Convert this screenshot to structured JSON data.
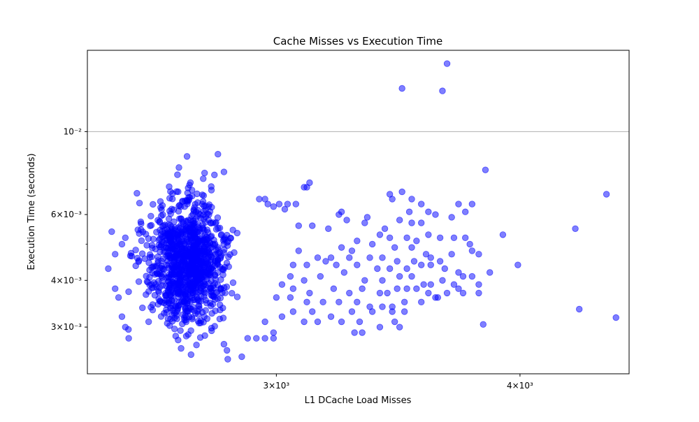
{
  "chart_data": {
    "type": "scatter",
    "title": "Cache Misses vs Execution Time",
    "xlabel": "L1 DCache Load Misses",
    "ylabel": "Execution Time (seconds)",
    "xscale": "log",
    "yscale": "log",
    "xlim": [
      2400,
      4550
    ],
    "ylim": [
      0.00225,
      0.0165
    ],
    "grid": "major y only",
    "x_ticks": [
      {
        "value": 3000,
        "label": "3×10³"
      },
      {
        "value": 4000,
        "label": "4×10³"
      }
    ],
    "y_ticks": [
      {
        "value": 0.003,
        "label": "3×10⁻³"
      },
      {
        "value": 0.004,
        "label": "4×10⁻³"
      },
      {
        "value": 0.006,
        "label": "6×10⁻³"
      },
      {
        "value": 0.01,
        "label": "10⁻²"
      }
    ],
    "point_color": "#0000ff",
    "point_alpha": 0.5,
    "dense_cluster": {
      "x_center": 2700,
      "x_spread": 60,
      "y_center": 0.0045,
      "y_spread_log": 0.085,
      "count": 1100
    },
    "points": [
      [
        3670,
        0.0152
      ],
      [
        3480,
        0.01305
      ],
      [
        3650,
        0.01285
      ],
      [
        3840,
        0.0079
      ],
      [
        4430,
        0.0068
      ],
      [
        4270,
        0.0055
      ],
      [
        3920,
        0.0053
      ],
      [
        3990,
        0.0044
      ],
      [
        4290,
        0.00335
      ],
      [
        4480,
        0.00318
      ],
      [
        3830,
        0.00305
      ],
      [
        2800,
        0.0087
      ],
      [
        2820,
        0.0078
      ],
      [
        3120,
        0.0073
      ],
      [
        3110,
        0.0071
      ],
      [
        3100,
        0.0071
      ],
      [
        3480,
        0.0069
      ],
      [
        3430,
        0.0068
      ],
      [
        3520,
        0.0066
      ],
      [
        3440,
        0.0066
      ],
      [
        3560,
        0.0064
      ],
      [
        3720,
        0.0064
      ],
      [
        3780,
        0.0064
      ],
      [
        3750,
        0.0061
      ],
      [
        3240,
        0.0061
      ],
      [
        3590,
        0.0061
      ],
      [
        3510,
        0.0061
      ],
      [
        3340,
        0.0059
      ],
      [
        3690,
        0.0059
      ],
      [
        3620,
        0.006
      ],
      [
        3230,
        0.006
      ],
      [
        3260,
        0.0058
      ],
      [
        3330,
        0.0057
      ],
      [
        3470,
        0.0058
      ],
      [
        3520,
        0.0057
      ],
      [
        3560,
        0.0057
      ],
      [
        3080,
        0.0056
      ],
      [
        3130,
        0.0056
      ],
      [
        3190,
        0.0055
      ],
      [
        3410,
        0.0055
      ],
      [
        3590,
        0.0053
      ],
      [
        3640,
        0.0052
      ],
      [
        3700,
        0.0052
      ],
      [
        3750,
        0.0052
      ],
      [
        3770,
        0.005
      ],
      [
        3390,
        0.0053
      ],
      [
        3430,
        0.0052
      ],
      [
        3500,
        0.0052
      ],
      [
        3540,
        0.0051
      ],
      [
        3300,
        0.0051
      ],
      [
        3240,
        0.0049
      ],
      [
        3280,
        0.0048
      ],
      [
        3360,
        0.005
      ],
      [
        3450,
        0.0049
      ],
      [
        3520,
        0.0049
      ],
      [
        3580,
        0.0047
      ],
      [
        3600,
        0.0046
      ],
      [
        3640,
        0.0045
      ],
      [
        3690,
        0.0047
      ],
      [
        3780,
        0.0048
      ],
      [
        3810,
        0.0047
      ],
      [
        3080,
        0.0048
      ],
      [
        3150,
        0.0046
      ],
      [
        3200,
        0.0046
      ],
      [
        3270,
        0.0046
      ],
      [
        3350,
        0.0046
      ],
      [
        3400,
        0.0046
      ],
      [
        3460,
        0.0045
      ],
      [
        3530,
        0.0045
      ],
      [
        3060,
        0.0044
      ],
      [
        3110,
        0.0044
      ],
      [
        3180,
        0.0045
      ],
      [
        3220,
        0.0044
      ],
      [
        3300,
        0.0044
      ],
      [
        3380,
        0.0043
      ],
      [
        3430,
        0.0043
      ],
      [
        3500,
        0.0043
      ],
      [
        3560,
        0.0044
      ],
      [
        3600,
        0.0044
      ],
      [
        3660,
        0.0043
      ],
      [
        3720,
        0.0042
      ],
      [
        3740,
        0.0041
      ],
      [
        3780,
        0.0041
      ],
      [
        3860,
        0.0042
      ],
      [
        3050,
        0.0041
      ],
      [
        3100,
        0.004
      ],
      [
        3160,
        0.0041
      ],
      [
        3250,
        0.0042
      ],
      [
        3330,
        0.004
      ],
      [
        3400,
        0.004
      ],
      [
        3470,
        0.0041
      ],
      [
        3520,
        0.0041
      ],
      [
        3570,
        0.0039
      ],
      [
        3600,
        0.0039
      ],
      [
        3650,
        0.004
      ],
      [
        3700,
        0.0039
      ],
      [
        3720,
        0.0038
      ],
      [
        3810,
        0.0039
      ],
      [
        3020,
        0.0039
      ],
      [
        3060,
        0.0038
      ],
      [
        3120,
        0.0037
      ],
      [
        3210,
        0.0038
      ],
      [
        3270,
        0.0037
      ],
      [
        3320,
        0.0038
      ],
      [
        3390,
        0.0037
      ],
      [
        3420,
        0.0037
      ],
      [
        3460,
        0.0038
      ],
      [
        3500,
        0.0038
      ],
      [
        3540,
        0.0038
      ],
      [
        3590,
        0.0037
      ],
      [
        3630,
        0.0036
      ],
      [
        3670,
        0.0037
      ],
      [
        3740,
        0.0037
      ],
      [
        3810,
        0.0037
      ],
      [
        3000,
        0.0036
      ],
      [
        3050,
        0.0036
      ],
      [
        3110,
        0.0035
      ],
      [
        3170,
        0.0035
      ],
      [
        3230,
        0.0035
      ],
      [
        3300,
        0.0035
      ],
      [
        3350,
        0.0034
      ],
      [
        3400,
        0.0034
      ],
      [
        3440,
        0.0034
      ],
      [
        3490,
        0.0035
      ],
      [
        3560,
        0.0035
      ],
      [
        3620,
        0.0036
      ],
      [
        3060,
        0.0033
      ],
      [
        3130,
        0.0033
      ],
      [
        3200,
        0.0032
      ],
      [
        3280,
        0.0033
      ],
      [
        3360,
        0.0033
      ],
      [
        3440,
        0.0033
      ],
      [
        3490,
        0.0033
      ],
      [
        3020,
        0.0032
      ],
      [
        3100,
        0.0031
      ],
      [
        3150,
        0.0031
      ],
      [
        3240,
        0.0031
      ],
      [
        3310,
        0.0031
      ],
      [
        3450,
        0.0031
      ],
      [
        3470,
        0.003
      ],
      [
        3390,
        0.003
      ],
      [
        3320,
        0.0029
      ],
      [
        3290,
        0.0029
      ],
      [
        2990,
        0.0029
      ],
      [
        2960,
        0.0031
      ],
      [
        2880,
        0.0025
      ],
      [
        2830,
        0.0026
      ],
      [
        2820,
        0.0027
      ],
      [
        2960,
        0.0028
      ],
      [
        2930,
        0.0028
      ],
      [
        2900,
        0.0028
      ],
      [
        2990,
        0.0028
      ],
      [
        2940,
        0.0066
      ],
      [
        2960,
        0.0066
      ],
      [
        2970,
        0.0064
      ],
      [
        2990,
        0.0063
      ],
      [
        3010,
        0.0064
      ],
      [
        3040,
        0.0064
      ],
      [
        3070,
        0.0064
      ],
      [
        3030,
        0.0062
      ],
      [
        2470,
        0.0054
      ],
      [
        2460,
        0.0043
      ],
      [
        2480,
        0.0038
      ],
      [
        2490,
        0.0036
      ],
      [
        2500,
        0.0032
      ],
      [
        2510,
        0.003
      ],
      [
        2520,
        0.0028
      ],
      [
        2480,
        0.0047
      ],
      [
        2500,
        0.005
      ],
      [
        2510,
        0.0052
      ]
    ]
  }
}
